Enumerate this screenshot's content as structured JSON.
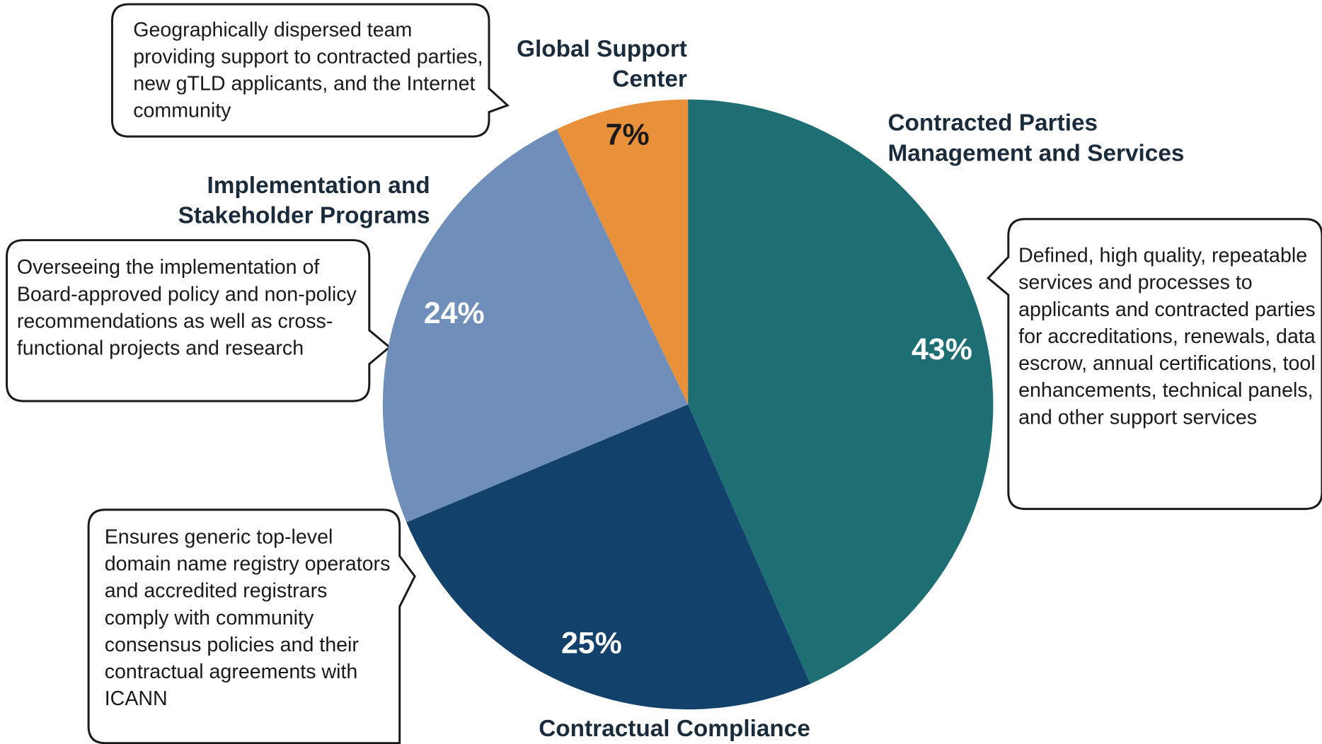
{
  "chart_data": {
    "type": "pie",
    "categories": [
      "Contracted Parties Management and Services",
      "Contractual Compliance",
      "Implementation and Stakeholder Programs",
      "Global Support Center"
    ],
    "values": [
      43,
      25,
      24,
      7
    ],
    "value_labels": [
      "43%",
      "25%",
      "24%",
      "7%"
    ],
    "colors": [
      "#1d6f73",
      "#12416b",
      "#6f8fba",
      "#e8913a"
    ],
    "annotations": [
      "Defined, high quality, repeatable services and processes to applicants and contracted parties for accreditations, renewals, data escrow, annual certifications, tool enhancements, technical panels, and other support services",
      "Ensures generic top-level domain name registry operators and accredited registrars comply with community consensus policies and their contractual agreements with ICANN",
      "Overseeing the implementation of Board-approved policy and non-policy recommendations as well as cross-functional projects and research",
      "Geographically dispersed team providing support to contracted parties, new gTLD applicants, and the Internet community"
    ]
  }
}
